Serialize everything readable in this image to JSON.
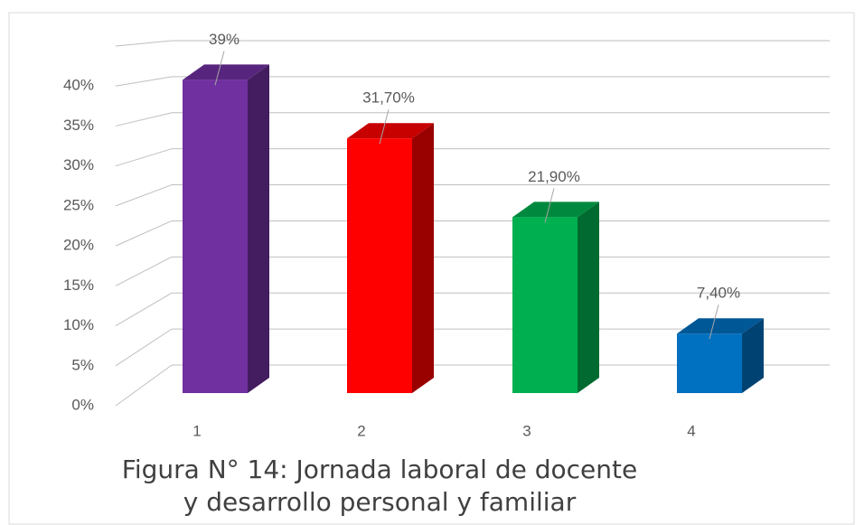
{
  "chart_data": {
    "type": "bar3d",
    "title": "Figura N° 14: Jornada laboral de docente y desarrollo personal y familiar",
    "categories": [
      "1",
      "2",
      "3",
      "4"
    ],
    "values": [
      39,
      31.7,
      21.9,
      7.4
    ],
    "value_labels": [
      "39%",
      "31,70%",
      "21,90%",
      "7,40%"
    ],
    "colors": [
      "#7030a0",
      "#ff0000",
      "#00b050",
      "#0070c0"
    ],
    "ylim": [
      0,
      45
    ],
    "yticks": [
      {
        "value": 0,
        "label": "0%"
      },
      {
        "value": 5,
        "label": "5%"
      },
      {
        "value": 10,
        "label": "10%"
      },
      {
        "value": 15,
        "label": "15%"
      },
      {
        "value": 20,
        "label": "20%"
      },
      {
        "value": 25,
        "label": "25%"
      },
      {
        "value": 30,
        "label": "30%"
      },
      {
        "value": 35,
        "label": "35%"
      },
      {
        "value": 40,
        "label": "40%"
      }
    ],
    "grid": true
  }
}
